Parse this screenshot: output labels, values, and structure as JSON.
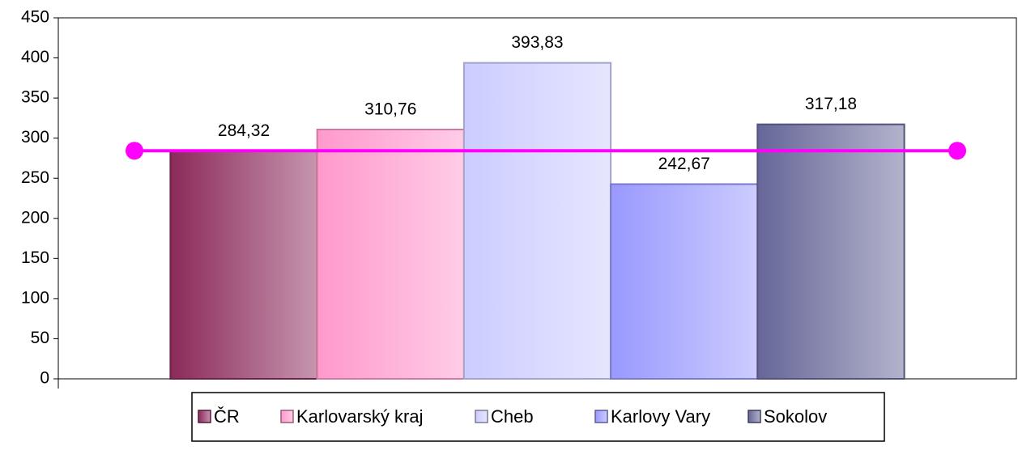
{
  "chart_data": {
    "type": "bar",
    "categories": [
      null
    ],
    "series": [
      {
        "name": "ČR",
        "color": "#8b2a5a",
        "values": [
          284.32
        ],
        "value_labels": [
          "284,32"
        ]
      },
      {
        "name": "Karlovarský kraj",
        "color": "#ff99cc",
        "values": [
          310.76
        ],
        "value_labels": [
          "310,76"
        ]
      },
      {
        "name": "Cheb",
        "color": "#ccccff",
        "values": [
          393.83
        ],
        "value_labels": [
          "393,83"
        ]
      },
      {
        "name": "Karlovy Vary",
        "color": "#9999ff",
        "values": [
          242.67
        ],
        "value_labels": [
          "242,67"
        ]
      },
      {
        "name": "Sokolov",
        "color": "#666699",
        "values": [
          317.18
        ],
        "value_labels": [
          "317,18"
        ]
      }
    ],
    "reference_line": {
      "value": 284.32,
      "color": "#ff00ff"
    },
    "ylim": [
      0,
      450
    ],
    "yticks": [
      0,
      50,
      100,
      150,
      200,
      250,
      300,
      350,
      400,
      450
    ],
    "grid": false,
    "legend": "bottom"
  }
}
